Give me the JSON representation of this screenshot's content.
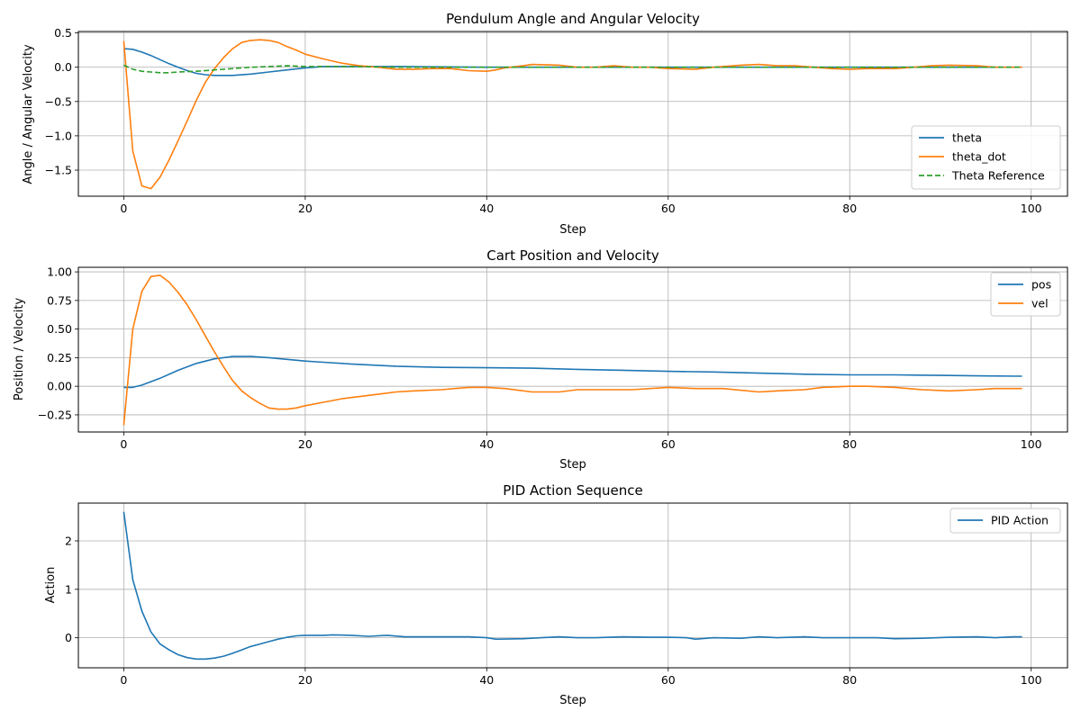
{
  "chart_data": [
    {
      "type": "line",
      "title": "Pendulum Angle and Angular Velocity",
      "xlabel": "Step",
      "ylabel": "Angle / Angular Velocity",
      "xlim": [
        -5,
        104
      ],
      "ylim": [
        -1.88,
        0.52
      ],
      "xticks": [
        0,
        20,
        40,
        60,
        80,
        100
      ],
      "yticks": [
        0.5,
        0.0,
        -0.5,
        -1.0,
        -1.5
      ],
      "ytick_labels": [
        "0.5",
        "0.0",
        "−0.5",
        "−1.0",
        "−1.5"
      ],
      "grid": true,
      "legend": "lower-right",
      "series": [
        {
          "name": "theta",
          "color": "#1f77b4",
          "dash": "solid",
          "points": [
            [
              0,
              0.27
            ],
            [
              1,
              0.26
            ],
            [
              2,
              0.22
            ],
            [
              3,
              0.17
            ],
            [
              4,
              0.11
            ],
            [
              5,
              0.05
            ],
            [
              6,
              0.0
            ],
            [
              7,
              -0.05
            ],
            [
              8,
              -0.09
            ],
            [
              9,
              -0.11
            ],
            [
              10,
              -0.12
            ],
            [
              12,
              -0.12
            ],
            [
              14,
              -0.1
            ],
            [
              16,
              -0.07
            ],
            [
              18,
              -0.04
            ],
            [
              20,
              -0.01
            ],
            [
              22,
              0.01
            ],
            [
              25,
              0.01
            ],
            [
              30,
              0.01
            ],
            [
              40,
              0.0
            ],
            [
              60,
              0.0
            ],
            [
              80,
              0.0
            ],
            [
              99,
              0.0
            ]
          ]
        },
        {
          "name": "theta_dot",
          "color": "#ff7f0e",
          "dash": "solid",
          "points": [
            [
              0,
              0.38
            ],
            [
              1,
              -1.22
            ],
            [
              2,
              -1.73
            ],
            [
              3,
              -1.77
            ],
            [
              4,
              -1.6
            ],
            [
              5,
              -1.35
            ],
            [
              6,
              -1.07
            ],
            [
              7,
              -0.78
            ],
            [
              8,
              -0.48
            ],
            [
              9,
              -0.22
            ],
            [
              10,
              -0.02
            ],
            [
              11,
              0.14
            ],
            [
              12,
              0.27
            ],
            [
              13,
              0.36
            ],
            [
              14,
              0.39
            ],
            [
              15,
              0.4
            ],
            [
              16,
              0.39
            ],
            [
              17,
              0.36
            ],
            [
              18,
              0.3
            ],
            [
              19,
              0.25
            ],
            [
              20,
              0.19
            ],
            [
              22,
              0.12
            ],
            [
              24,
              0.06
            ],
            [
              26,
              0.02
            ],
            [
              28,
              0.0
            ],
            [
              30,
              -0.03
            ],
            [
              32,
              -0.03
            ],
            [
              34,
              -0.02
            ],
            [
              36,
              -0.02
            ],
            [
              38,
              -0.05
            ],
            [
              40,
              -0.06
            ],
            [
              41,
              -0.04
            ],
            [
              42,
              -0.01
            ],
            [
              44,
              0.02
            ],
            [
              45,
              0.04
            ],
            [
              48,
              0.03
            ],
            [
              50,
              0.0
            ],
            [
              52,
              0.0
            ],
            [
              54,
              0.02
            ],
            [
              56,
              0.0
            ],
            [
              58,
              0.0
            ],
            [
              60,
              -0.02
            ],
            [
              63,
              -0.03
            ],
            [
              65,
              0.0
            ],
            [
              68,
              0.03
            ],
            [
              70,
              0.04
            ],
            [
              72,
              0.02
            ],
            [
              74,
              0.02
            ],
            [
              76,
              0.0
            ],
            [
              78,
              -0.02
            ],
            [
              80,
              -0.03
            ],
            [
              82,
              -0.02
            ],
            [
              85,
              -0.02
            ],
            [
              87,
              0.0
            ],
            [
              89,
              0.02
            ],
            [
              91,
              0.03
            ],
            [
              94,
              0.02
            ],
            [
              96,
              0.0
            ],
            [
              99,
              0.0
            ]
          ]
        },
        {
          "name": "Theta Reference",
          "color": "#2ca02c",
          "dash": "dashed",
          "points": [
            [
              0,
              0.03
            ],
            [
              1,
              -0.03
            ],
            [
              2,
              -0.06
            ],
            [
              3,
              -0.07
            ],
            [
              4,
              -0.08
            ],
            [
              5,
              -0.08
            ],
            [
              6,
              -0.07
            ],
            [
              8,
              -0.06
            ],
            [
              10,
              -0.04
            ],
            [
              12,
              -0.02
            ],
            [
              14,
              0.0
            ],
            [
              16,
              0.01
            ],
            [
              18,
              0.02
            ],
            [
              20,
              0.01
            ],
            [
              25,
              0.01
            ],
            [
              30,
              0.0
            ],
            [
              60,
              0.0
            ],
            [
              99,
              0.0
            ]
          ]
        }
      ]
    },
    {
      "type": "line",
      "title": "Cart Position and Velocity",
      "xlabel": "Step",
      "ylabel": "Position / Velocity",
      "xlim": [
        -5,
        104
      ],
      "ylim": [
        -0.4,
        1.04
      ],
      "xticks": [
        0,
        20,
        40,
        60,
        80,
        100
      ],
      "yticks": [
        1.0,
        0.75,
        0.5,
        0.25,
        0.0,
        -0.25
      ],
      "ytick_labels": [
        "1.00",
        "0.75",
        "0.50",
        "0.25",
        "0.00",
        "−0.25"
      ],
      "grid": true,
      "legend": "top-right",
      "series": [
        {
          "name": "pos",
          "color": "#1f77b4",
          "dash": "solid",
          "points": [
            [
              0,
              -0.01
            ],
            [
              1,
              -0.01
            ],
            [
              2,
              0.01
            ],
            [
              4,
              0.07
            ],
            [
              6,
              0.14
            ],
            [
              8,
              0.2
            ],
            [
              10,
              0.24
            ],
            [
              12,
              0.26
            ],
            [
              14,
              0.26
            ],
            [
              16,
              0.25
            ],
            [
              18,
              0.235
            ],
            [
              20,
              0.22
            ],
            [
              22,
              0.21
            ],
            [
              25,
              0.195
            ],
            [
              30,
              0.175
            ],
            [
              35,
              0.165
            ],
            [
              40,
              0.162
            ],
            [
              45,
              0.158
            ],
            [
              50,
              0.148
            ],
            [
              55,
              0.14
            ],
            [
              60,
              0.13
            ],
            [
              65,
              0.125
            ],
            [
              70,
              0.115
            ],
            [
              75,
              0.105
            ],
            [
              80,
              0.1
            ],
            [
              85,
              0.1
            ],
            [
              90,
              0.095
            ],
            [
              95,
              0.09
            ],
            [
              99,
              0.088
            ]
          ]
        },
        {
          "name": "vel",
          "color": "#ff7f0e",
          "dash": "solid",
          "points": [
            [
              0,
              -0.34
            ],
            [
              1,
              0.5
            ],
            [
              2,
              0.83
            ],
            [
              3,
              0.96
            ],
            [
              4,
              0.97
            ],
            [
              5,
              0.91
            ],
            [
              6,
              0.82
            ],
            [
              7,
              0.71
            ],
            [
              8,
              0.58
            ],
            [
              9,
              0.44
            ],
            [
              10,
              0.3
            ],
            [
              11,
              0.17
            ],
            [
              12,
              0.05
            ],
            [
              13,
              -0.04
            ],
            [
              14,
              -0.1
            ],
            [
              15,
              -0.15
            ],
            [
              16,
              -0.19
            ],
            [
              17,
              -0.2
            ],
            [
              18,
              -0.2
            ],
            [
              19,
              -0.19
            ],
            [
              20,
              -0.17
            ],
            [
              22,
              -0.14
            ],
            [
              24,
              -0.11
            ],
            [
              26,
              -0.09
            ],
            [
              28,
              -0.07
            ],
            [
              30,
              -0.05
            ],
            [
              32,
              -0.04
            ],
            [
              35,
              -0.03
            ],
            [
              38,
              -0.01
            ],
            [
              40,
              -0.01
            ],
            [
              42,
              -0.02
            ],
            [
              45,
              -0.05
            ],
            [
              48,
              -0.05
            ],
            [
              50,
              -0.03
            ],
            [
              53,
              -0.03
            ],
            [
              56,
              -0.03
            ],
            [
              60,
              -0.01
            ],
            [
              63,
              -0.02
            ],
            [
              66,
              -0.02
            ],
            [
              70,
              -0.05
            ],
            [
              72,
              -0.04
            ],
            [
              75,
              -0.03
            ],
            [
              77,
              -0.01
            ],
            [
              80,
              0.0
            ],
            [
              82,
              0.0
            ],
            [
              85,
              -0.01
            ],
            [
              88,
              -0.03
            ],
            [
              91,
              -0.04
            ],
            [
              94,
              -0.03
            ],
            [
              96,
              -0.02
            ],
            [
              99,
              -0.02
            ]
          ]
        }
      ]
    },
    {
      "type": "line",
      "title": "PID Action Sequence",
      "xlabel": "Step",
      "ylabel": "Action",
      "xlim": [
        -5,
        104
      ],
      "ylim": [
        -0.62,
        2.78
      ],
      "xticks": [
        0,
        20,
        40,
        60,
        80,
        100
      ],
      "yticks": [
        2,
        1,
        0
      ],
      "ytick_labels": [
        "2",
        "1",
        "0"
      ],
      "grid": true,
      "legend": "top-right",
      "series": [
        {
          "name": "PID Action",
          "color": "#1f77b4",
          "dash": "solid",
          "points": [
            [
              0,
              2.6
            ],
            [
              1,
              1.2
            ],
            [
              2,
              0.55
            ],
            [
              3,
              0.12
            ],
            [
              4,
              -0.13
            ],
            [
              5,
              -0.25
            ],
            [
              6,
              -0.35
            ],
            [
              7,
              -0.41
            ],
            [
              8,
              -0.44
            ],
            [
              9,
              -0.44
            ],
            [
              10,
              -0.42
            ],
            [
              11,
              -0.38
            ],
            [
              12,
              -0.32
            ],
            [
              13,
              -0.25
            ],
            [
              14,
              -0.18
            ],
            [
              15,
              -0.13
            ],
            [
              16,
              -0.08
            ],
            [
              17,
              -0.03
            ],
            [
              18,
              0.01
            ],
            [
              19,
              0.04
            ],
            [
              20,
              0.05
            ],
            [
              22,
              0.05
            ],
            [
              23,
              0.06
            ],
            [
              25,
              0.05
            ],
            [
              27,
              0.03
            ],
            [
              29,
              0.05
            ],
            [
              31,
              0.02
            ],
            [
              35,
              0.02
            ],
            [
              38,
              0.02
            ],
            [
              40,
              0.0
            ],
            [
              41,
              -0.03
            ],
            [
              44,
              -0.02
            ],
            [
              46,
              0.0
            ],
            [
              48,
              0.02
            ],
            [
              50,
              0.0
            ],
            [
              52,
              0.0
            ],
            [
              55,
              0.02
            ],
            [
              58,
              0.01
            ],
            [
              60,
              0.01
            ],
            [
              62,
              0.0
            ],
            [
              63,
              -0.03
            ],
            [
              65,
              0.0
            ],
            [
              68,
              -0.01
            ],
            [
              70,
              0.02
            ],
            [
              72,
              0.0
            ],
            [
              75,
              0.02
            ],
            [
              77,
              0.0
            ],
            [
              80,
              0.0
            ],
            [
              83,
              0.0
            ],
            [
              85,
              -0.02
            ],
            [
              88,
              -0.01
            ],
            [
              91,
              0.01
            ],
            [
              94,
              0.02
            ],
            [
              96,
              0.0
            ],
            [
              98,
              0.02
            ],
            [
              99,
              0.02
            ]
          ]
        }
      ]
    }
  ]
}
